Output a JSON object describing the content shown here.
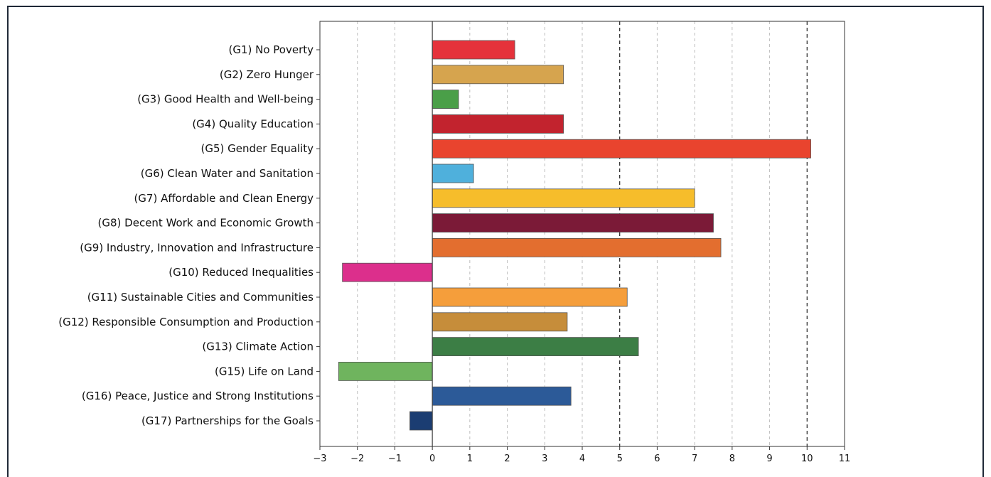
{
  "chart_data": {
    "type": "bar",
    "orientation": "horizontal",
    "title": "",
    "xlabel": "",
    "ylabel": "",
    "xlim": [
      -3,
      11
    ],
    "xticks": [
      -3,
      -2,
      -1,
      0,
      1,
      2,
      3,
      4,
      5,
      6,
      7,
      8,
      9,
      10,
      11
    ],
    "xtick_labels": [
      "−3",
      "−2",
      "−1",
      "0",
      "1",
      "2",
      "3",
      "4",
      "5",
      "6",
      "7",
      "8",
      "9",
      "10",
      "11"
    ],
    "grid": "vertical dashed",
    "reference_lines": [
      5,
      10
    ],
    "categories": [
      "(G1) No Poverty",
      "(G2) Zero Hunger",
      "(G3) Good Health and Well-being",
      "(G4) Quality Education",
      "(G5) Gender Equality",
      "(G6) Clean Water and Sanitation",
      "(G7) Affordable and Clean Energy",
      "(G8) Decent Work and Economic Growth",
      "(G9) Industry, Innovation and Infrastructure",
      "(G10) Reduced Inequalities",
      "(G11) Sustainable Cities and Communities",
      "(G12) Responsible Consumption and Production",
      "(G13) Climate Action",
      "(G15) Life on Land",
      "(G16) Peace, Justice and Strong Institutions",
      "(G17) Partnerships for the Goals"
    ],
    "values": [
      2.2,
      3.5,
      0.7,
      3.5,
      10.1,
      1.1,
      7.0,
      7.5,
      7.7,
      -2.4,
      5.2,
      3.6,
      5.5,
      -2.5,
      3.7,
      -0.6
    ],
    "colors": [
      "#e5323b",
      "#d6a44e",
      "#4a9f48",
      "#c2232e",
      "#e9442e",
      "#4fb0dc",
      "#f6bd2b",
      "#7b1a37",
      "#e36e2f",
      "#dc2f8c",
      "#f59e3b",
      "#c68d3a",
      "#3c7e45",
      "#6fb45e",
      "#2c5a98",
      "#1b3d72"
    ]
  }
}
